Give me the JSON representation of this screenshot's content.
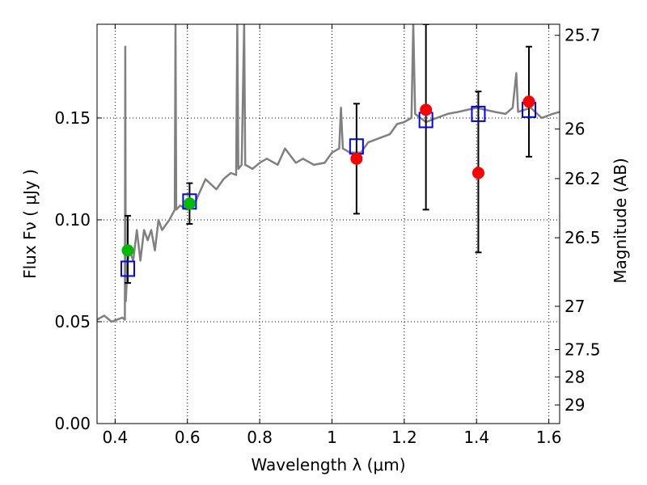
{
  "chart_data": {
    "type": "scatter",
    "xlabel": "Wavelength  λ (μm)",
    "ylabel_left": "Flux  Fν  ( μJy )",
    "ylabel_right": "Magnitude (AB)",
    "xlim": [
      0.35,
      1.63
    ],
    "ylim": [
      0.0,
      0.196
    ],
    "grid": true,
    "x_ticks": [
      {
        "value": 0.4,
        "label": "0.4"
      },
      {
        "value": 0.6,
        "label": "0.6"
      },
      {
        "value": 0.8,
        "label": "0.8"
      },
      {
        "value": 1.0,
        "label": "1"
      },
      {
        "value": 1.2,
        "label": "1.2"
      },
      {
        "value": 1.4,
        "label": "1.4"
      },
      {
        "value": 1.6,
        "label": "1.6"
      }
    ],
    "y_ticks": [
      {
        "value": 0.0,
        "label": "0.00"
      },
      {
        "value": 0.05,
        "label": "0.05"
      },
      {
        "value": 0.1,
        "label": "0.10"
      },
      {
        "value": 0.15,
        "label": "0.15"
      }
    ],
    "mag_ticks": [
      {
        "value": 25.7,
        "label": "25.7"
      },
      {
        "value": 26.0,
        "label": "26"
      },
      {
        "value": 26.2,
        "label": "26.2"
      },
      {
        "value": 26.5,
        "label": "26.5"
      },
      {
        "value": 27.0,
        "label": "27"
      },
      {
        "value": 27.5,
        "label": "27.5"
      },
      {
        "value": 28.0,
        "label": "28"
      },
      {
        "value": 29.0,
        "label": "29"
      }
    ],
    "colors": {
      "spectrum": "#808080",
      "model_boxes": "#0000ff",
      "green_points": "#00bb00",
      "red_points": "#ff0000",
      "errorbars": "#000000"
    },
    "spectrum": [
      [
        0.35,
        0.051
      ],
      [
        0.37,
        0.053
      ],
      [
        0.39,
        0.05
      ],
      [
        0.42,
        0.052
      ],
      [
        0.427,
        0.051
      ],
      [
        0.428,
        0.185
      ],
      [
        0.4295,
        0.06
      ],
      [
        0.435,
        0.08
      ],
      [
        0.44,
        0.085
      ],
      [
        0.45,
        0.08
      ],
      [
        0.46,
        0.095
      ],
      [
        0.47,
        0.08
      ],
      [
        0.48,
        0.095
      ],
      [
        0.49,
        0.09
      ],
      [
        0.5,
        0.095
      ],
      [
        0.51,
        0.085
      ],
      [
        0.52,
        0.1
      ],
      [
        0.53,
        0.095
      ],
      [
        0.55,
        0.1
      ],
      [
        0.565,
        0.105
      ],
      [
        0.567,
        0.196
      ],
      [
        0.569,
        0.105
      ],
      [
        0.58,
        0.107
      ],
      [
        0.6,
        0.105
      ],
      [
        0.62,
        0.108
      ],
      [
        0.65,
        0.12
      ],
      [
        0.68,
        0.115
      ],
      [
        0.7,
        0.12
      ],
      [
        0.72,
        0.123
      ],
      [
        0.735,
        0.122
      ],
      [
        0.738,
        0.196
      ],
      [
        0.741,
        0.125
      ],
      [
        0.75,
        0.127
      ],
      [
        0.757,
        0.196
      ],
      [
        0.76,
        0.127
      ],
      [
        0.78,
        0.125
      ],
      [
        0.8,
        0.128
      ],
      [
        0.82,
        0.13
      ],
      [
        0.85,
        0.127
      ],
      [
        0.87,
        0.135
      ],
      [
        0.9,
        0.128
      ],
      [
        0.92,
        0.13
      ],
      [
        0.95,
        0.127
      ],
      [
        0.98,
        0.128
      ],
      [
        1.0,
        0.133
      ],
      [
        1.02,
        0.135
      ],
      [
        1.025,
        0.155
      ],
      [
        1.03,
        0.135
      ],
      [
        1.05,
        0.133
      ],
      [
        1.08,
        0.133
      ],
      [
        1.1,
        0.138
      ],
      [
        1.13,
        0.14
      ],
      [
        1.16,
        0.142
      ],
      [
        1.18,
        0.147
      ],
      [
        1.2,
        0.148
      ],
      [
        1.22,
        0.15
      ],
      [
        1.225,
        0.196
      ],
      [
        1.23,
        0.152
      ],
      [
        1.26,
        0.148
      ],
      [
        1.29,
        0.15
      ],
      [
        1.32,
        0.152
      ],
      [
        1.35,
        0.153
      ],
      [
        1.4,
        0.155
      ],
      [
        1.45,
        0.153
      ],
      [
        1.48,
        0.152
      ],
      [
        1.5,
        0.155
      ],
      [
        1.51,
        0.172
      ],
      [
        1.515,
        0.153
      ],
      [
        1.55,
        0.155
      ],
      [
        1.58,
        0.15
      ],
      [
        1.61,
        0.152
      ],
      [
        1.63,
        0.153
      ]
    ],
    "model_boxes": [
      {
        "x": 0.435,
        "y": 0.076
      },
      {
        "x": 0.606,
        "y": 0.109
      },
      {
        "x": 1.068,
        "y": 0.136
      },
      {
        "x": 1.26,
        "y": 0.149
      },
      {
        "x": 1.405,
        "y": 0.152
      },
      {
        "x": 1.545,
        "y": 0.154
      }
    ],
    "green_points": [
      {
        "x": 0.435,
        "y": 0.085,
        "err_low": 0.069,
        "err_high": 0.102
      },
      {
        "x": 0.606,
        "y": 0.108,
        "err_low": 0.098,
        "err_high": 0.118
      }
    ],
    "red_points": [
      {
        "x": 1.068,
        "y": 0.13,
        "err_low": 0.103,
        "err_high": 0.157
      },
      {
        "x": 1.26,
        "y": 0.154,
        "err_low": 0.105,
        "err_high": 0.196
      },
      {
        "x": 1.405,
        "y": 0.123,
        "err_low": 0.084,
        "err_high": 0.163
      },
      {
        "x": 1.545,
        "y": 0.158,
        "err_low": 0.131,
        "err_high": 0.185
      }
    ]
  }
}
